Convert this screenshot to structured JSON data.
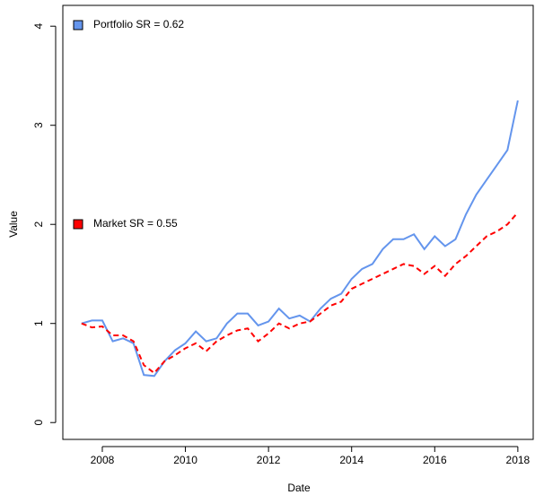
{
  "chart_data": {
    "type": "line",
    "x_label": "Date",
    "y_label": "Value",
    "xlim": [
      2007.05,
      2018.37
    ],
    "ylim": [
      -0.17,
      4.21
    ],
    "xticks": [
      2008,
      2010,
      2012,
      2014,
      2016,
      2018
    ],
    "yticks": [
      0,
      1,
      2,
      3,
      4
    ],
    "x": [
      2007.5,
      2007.75,
      2008,
      2008.25,
      2008.5,
      2008.75,
      2009,
      2009.25,
      2009.5,
      2009.75,
      2010,
      2010.25,
      2010.5,
      2010.75,
      2011,
      2011.25,
      2011.5,
      2011.75,
      2012,
      2012.25,
      2012.5,
      2012.75,
      2013,
      2013.25,
      2013.5,
      2013.75,
      2014,
      2014.25,
      2014.5,
      2014.75,
      2015,
      2015.25,
      2015.5,
      2015.75,
      2016,
      2016.25,
      2016.5,
      2016.75,
      2017,
      2017.25,
      2017.5,
      2017.75,
      2018
    ],
    "series": [
      {
        "name": "Portfolio SR = 0.62",
        "color": "#6495ed",
        "dashed": false,
        "values": [
          1.0,
          1.03,
          1.03,
          0.82,
          0.85,
          0.8,
          0.48,
          0.47,
          0.62,
          0.73,
          0.8,
          0.92,
          0.82,
          0.85,
          1.0,
          1.1,
          1.1,
          0.98,
          1.02,
          1.15,
          1.05,
          1.08,
          1.02,
          1.15,
          1.25,
          1.3,
          1.45,
          1.55,
          1.6,
          1.75,
          1.85,
          1.85,
          1.9,
          1.75,
          1.88,
          1.78,
          1.85,
          2.1,
          2.3,
          2.45,
          2.6,
          2.75,
          3.25
        ]
      },
      {
        "name": "Market SR = 0.55",
        "color": "#ff0000",
        "dashed": true,
        "values": [
          1.0,
          0.96,
          0.97,
          0.88,
          0.88,
          0.82,
          0.58,
          0.5,
          0.62,
          0.68,
          0.75,
          0.8,
          0.72,
          0.82,
          0.88,
          0.93,
          0.95,
          0.82,
          0.9,
          1.0,
          0.95,
          1.0,
          1.02,
          1.1,
          1.18,
          1.22,
          1.35,
          1.4,
          1.45,
          1.5,
          1.55,
          1.6,
          1.58,
          1.5,
          1.58,
          1.48,
          1.6,
          1.68,
          1.78,
          1.88,
          1.93,
          2.0,
          2.12
        ]
      }
    ]
  }
}
